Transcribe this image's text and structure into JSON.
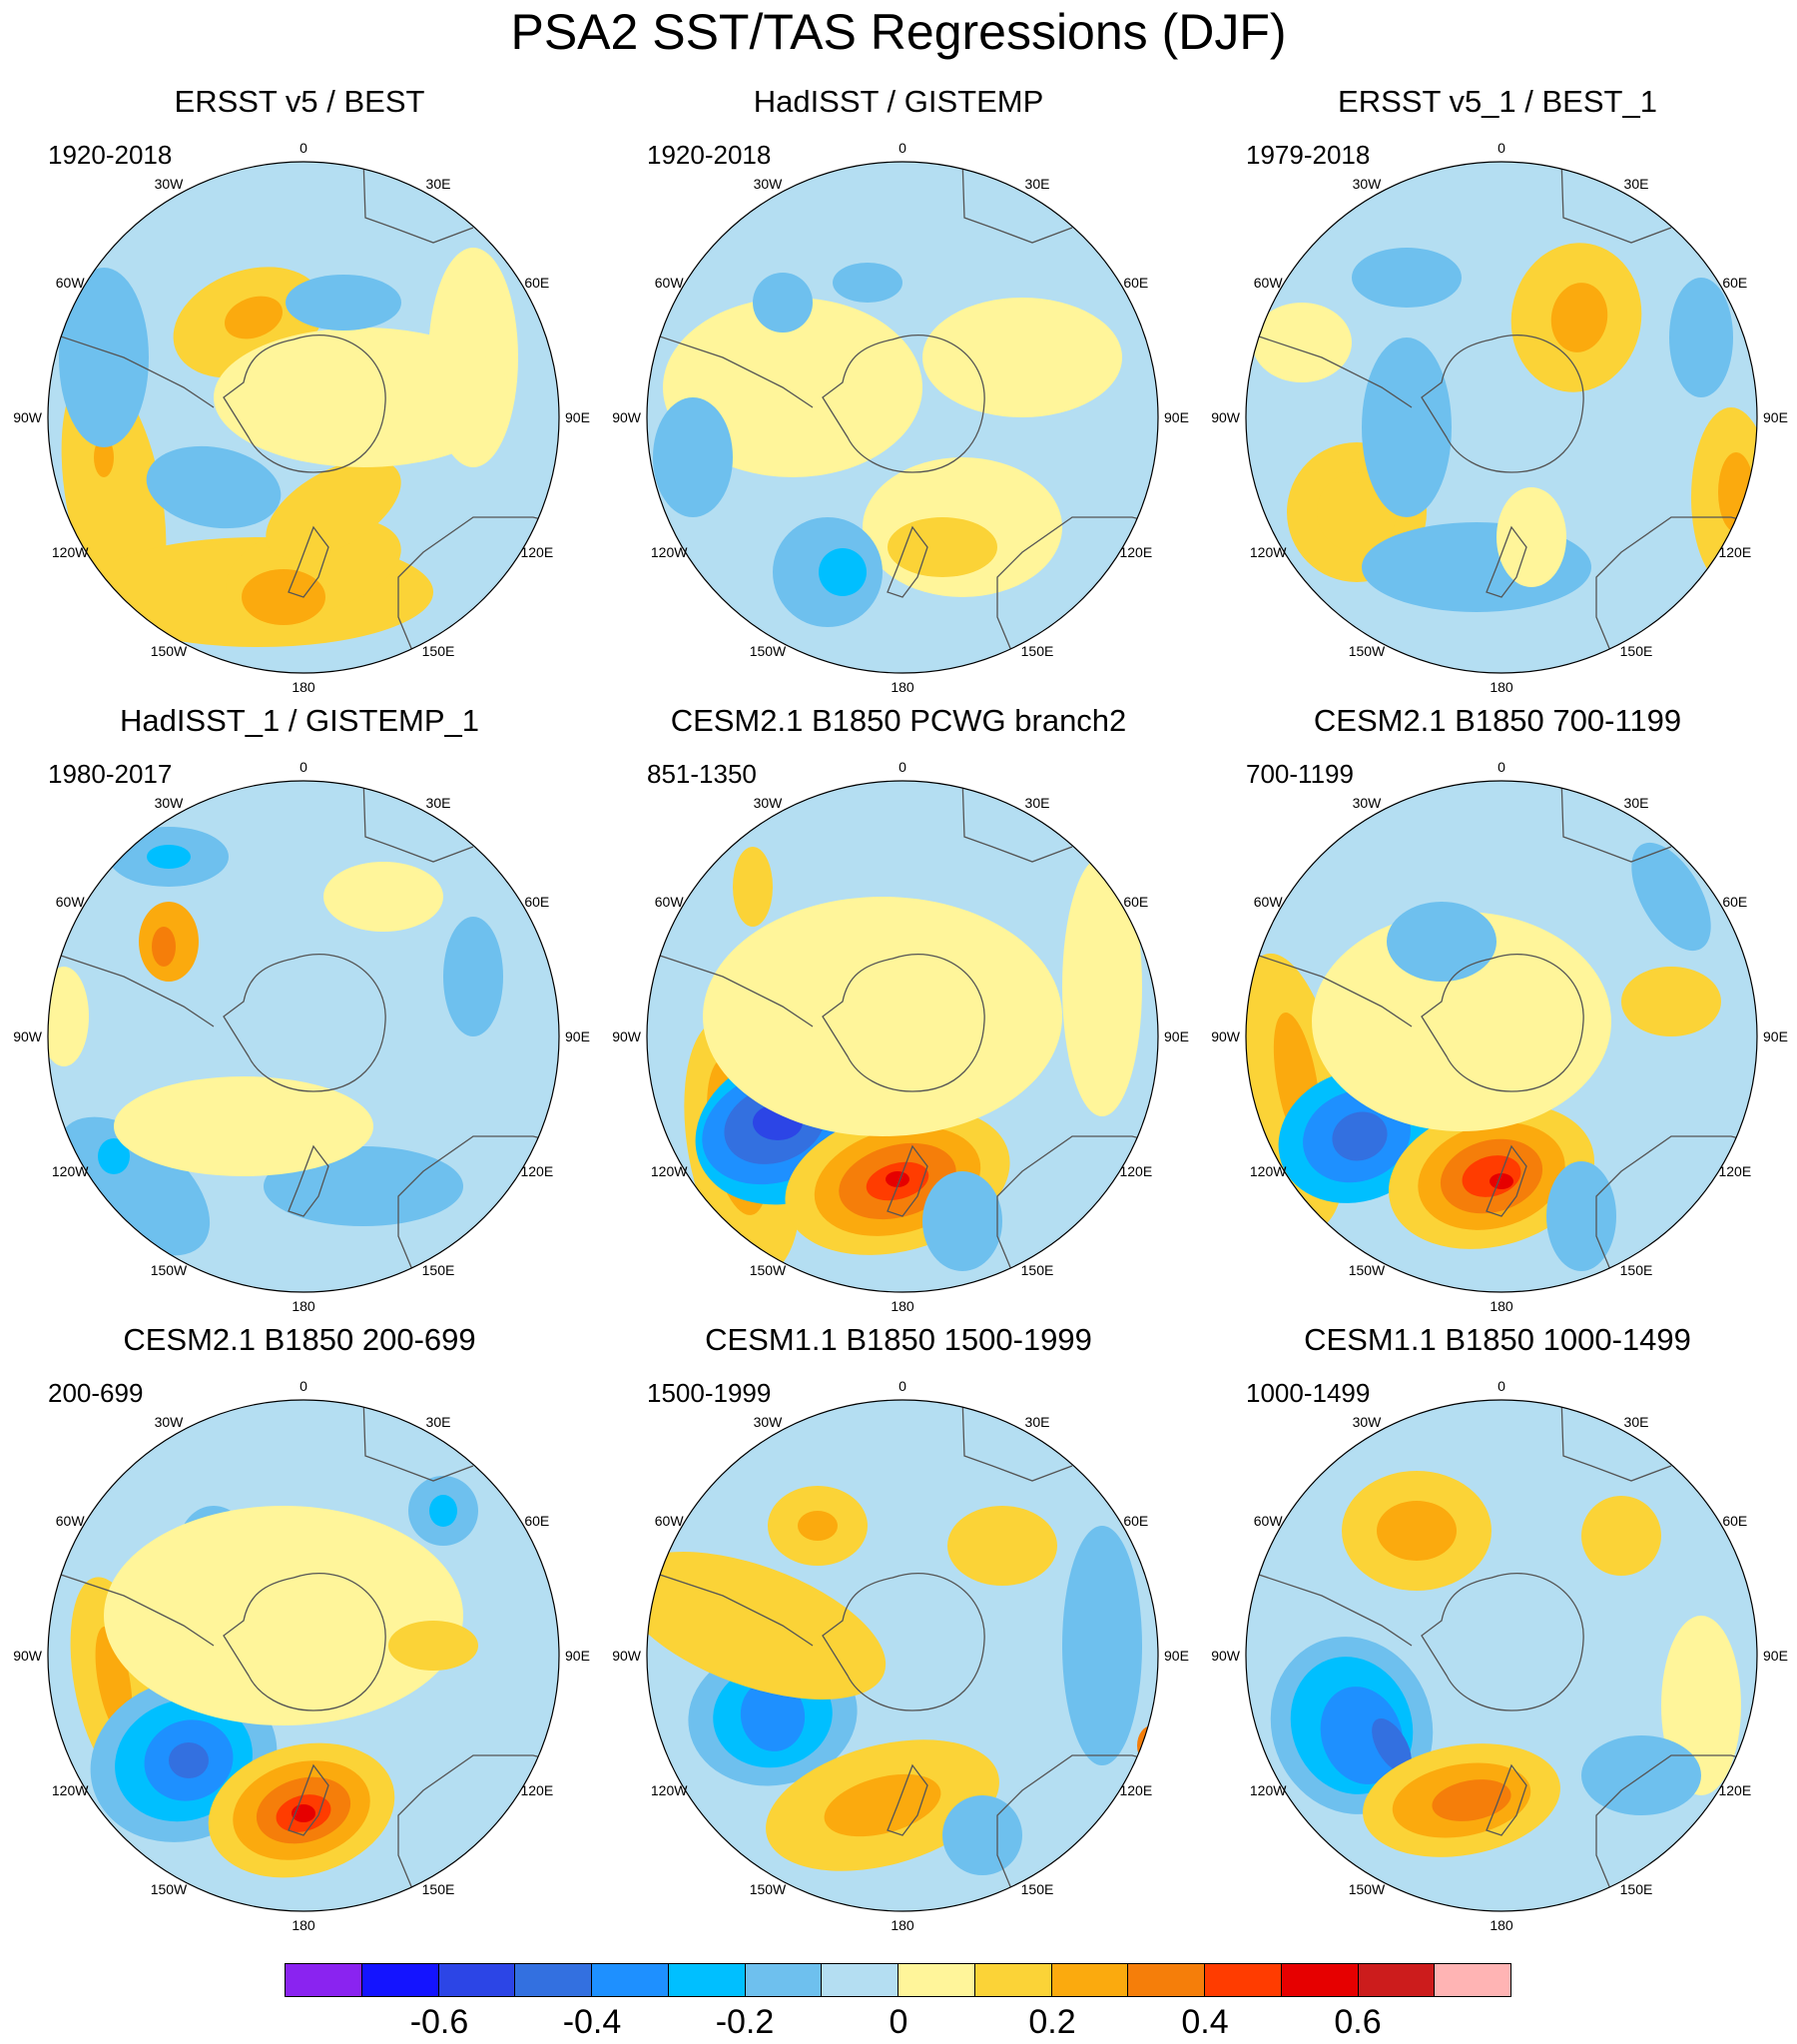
{
  "figure": {
    "title": "PSA2 SST/TAS Regressions (DJF)"
  },
  "longitude_labels": [
    "0",
    "30E",
    "60E",
    "90E",
    "120E",
    "150E",
    "180",
    "150W",
    "120W",
    "90W",
    "60W",
    "30W"
  ],
  "panels": [
    {
      "title": "ERSST v5 / BEST",
      "years": "1920-2018"
    },
    {
      "title": "HadISST / GISTEMP",
      "years": "1920-2018"
    },
    {
      "title": "ERSST v5_1 / BEST_1",
      "years": "1979-2018"
    },
    {
      "title": "HadISST_1 / GISTEMP_1",
      "years": "1980-2017"
    },
    {
      "title": "CESM2.1 B1850 PCWG branch2",
      "years": "851-1350"
    },
    {
      "title": "CESM2.1 B1850 700-1199",
      "years": "700-1199"
    },
    {
      "title": "CESM2.1 B1850 200-699",
      "years": "200-699"
    },
    {
      "title": "CESM1.1 B1850 1500-1999",
      "years": "1500-1999"
    },
    {
      "title": "CESM1.1 B1850 1000-1499",
      "years": "1000-1499"
    }
  ],
  "colorbar": {
    "colors": [
      "#8a23f0",
      "#1414ff",
      "#2c45e6",
      "#3370e0",
      "#1e90ff",
      "#00bfff",
      "#6ec0ee",
      "#b4def2",
      "#fff59a",
      "#fbd337",
      "#fbaa0e",
      "#f57e0a",
      "#ff3c00",
      "#e60000",
      "#cc1c1c",
      "#ffb4b4"
    ],
    "tick_labels": [
      "-0.6",
      "-0.4",
      "-0.2",
      "0",
      "0.2",
      "0.4",
      "0.6"
    ]
  }
}
